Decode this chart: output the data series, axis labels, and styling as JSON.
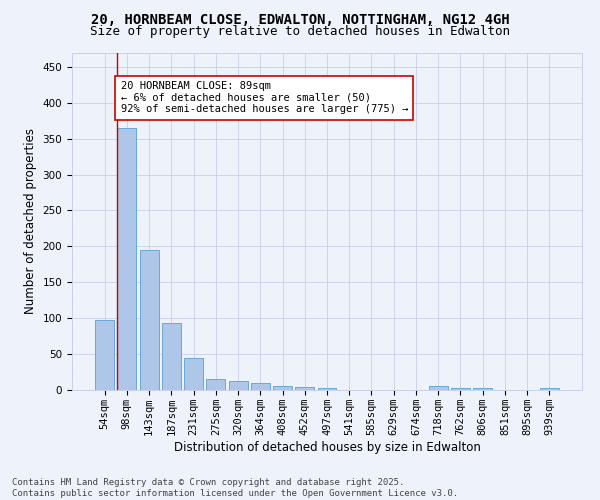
{
  "title_line1": "20, HORNBEAM CLOSE, EDWALTON, NOTTINGHAM, NG12 4GH",
  "title_line2": "Size of property relative to detached houses in Edwalton",
  "xlabel": "Distribution of detached houses by size in Edwalton",
  "ylabel": "Number of detached properties",
  "bar_labels": [
    "54sqm",
    "98sqm",
    "143sqm",
    "187sqm",
    "231sqm",
    "275sqm",
    "320sqm",
    "364sqm",
    "408sqm",
    "452sqm",
    "497sqm",
    "541sqm",
    "585sqm",
    "629sqm",
    "674sqm",
    "718sqm",
    "762sqm",
    "806sqm",
    "851sqm",
    "895sqm",
    "939sqm"
  ],
  "bar_values": [
    98,
    365,
    195,
    93,
    45,
    15,
    12,
    10,
    6,
    4,
    3,
    0,
    0,
    0,
    0,
    6,
    3,
    3,
    0,
    0,
    3
  ],
  "bar_color": "#aec6e8",
  "bar_edge_color": "#5a9fd4",
  "vline_color": "#cc0000",
  "annotation_text": "20 HORNBEAM CLOSE: 89sqm\n← 6% of detached houses are smaller (50)\n92% of semi-detached houses are larger (775) →",
  "annotation_box_color": "#ffffff",
  "annotation_box_edge": "#cc0000",
  "ylim": [
    0,
    470
  ],
  "yticks": [
    0,
    50,
    100,
    150,
    200,
    250,
    300,
    350,
    400,
    450
  ],
  "background_color": "#eef2fb",
  "grid_color": "#c8d0e8",
  "footer_text": "Contains HM Land Registry data © Crown copyright and database right 2025.\nContains public sector information licensed under the Open Government Licence v3.0.",
  "title_fontsize": 10,
  "subtitle_fontsize": 9,
  "axis_label_fontsize": 8.5,
  "tick_fontsize": 7.5,
  "annotation_fontsize": 7.5,
  "footer_fontsize": 6.5
}
